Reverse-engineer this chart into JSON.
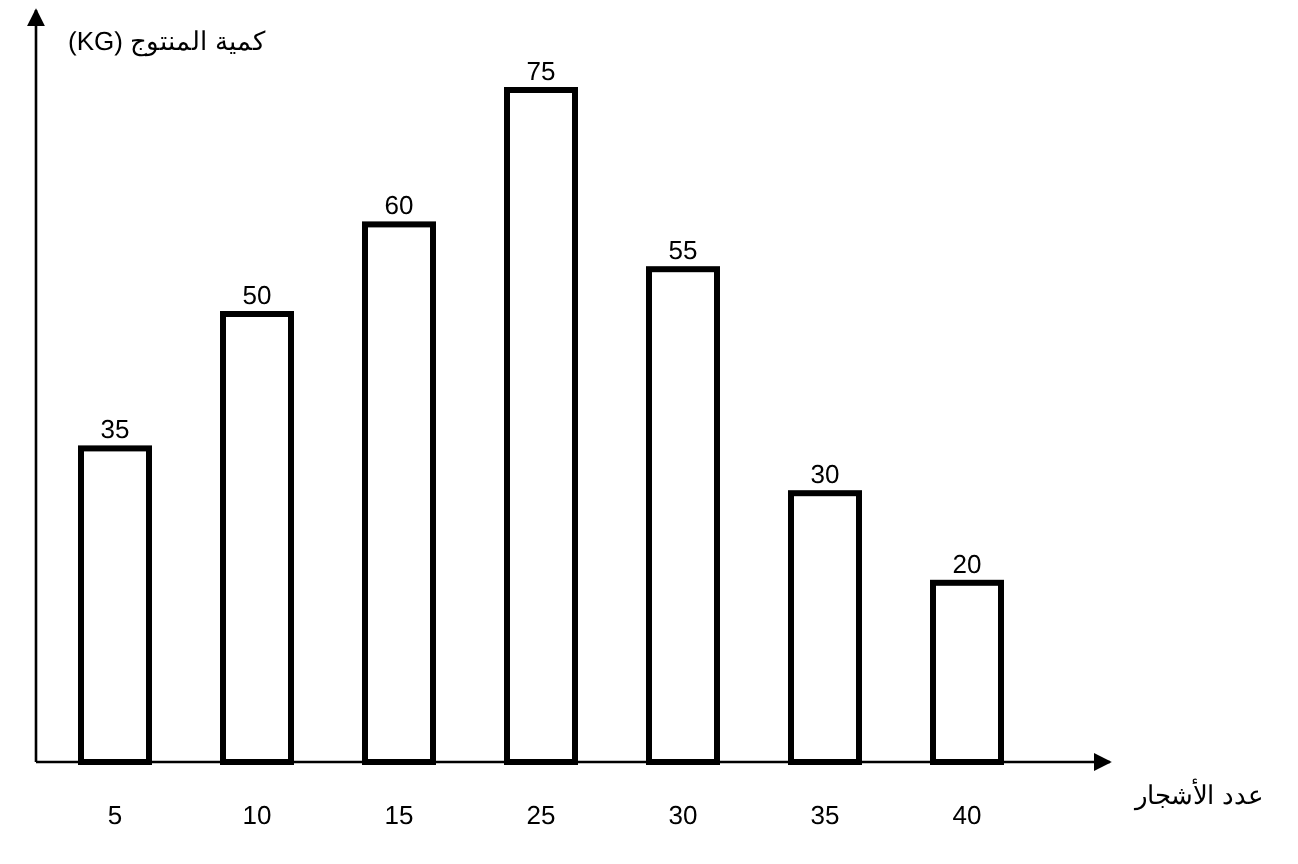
{
  "chart_data": {
    "type": "bar",
    "xlabel": "عدد الأشجار",
    "ylabel": "كمية المنتوج (KG)",
    "categories": [
      "5",
      "10",
      "15",
      "25",
      "30",
      "35",
      "40"
    ],
    "values": [
      35,
      50,
      60,
      75,
      55,
      30,
      20
    ],
    "color": "#ffffff",
    "data_labels": true
  }
}
